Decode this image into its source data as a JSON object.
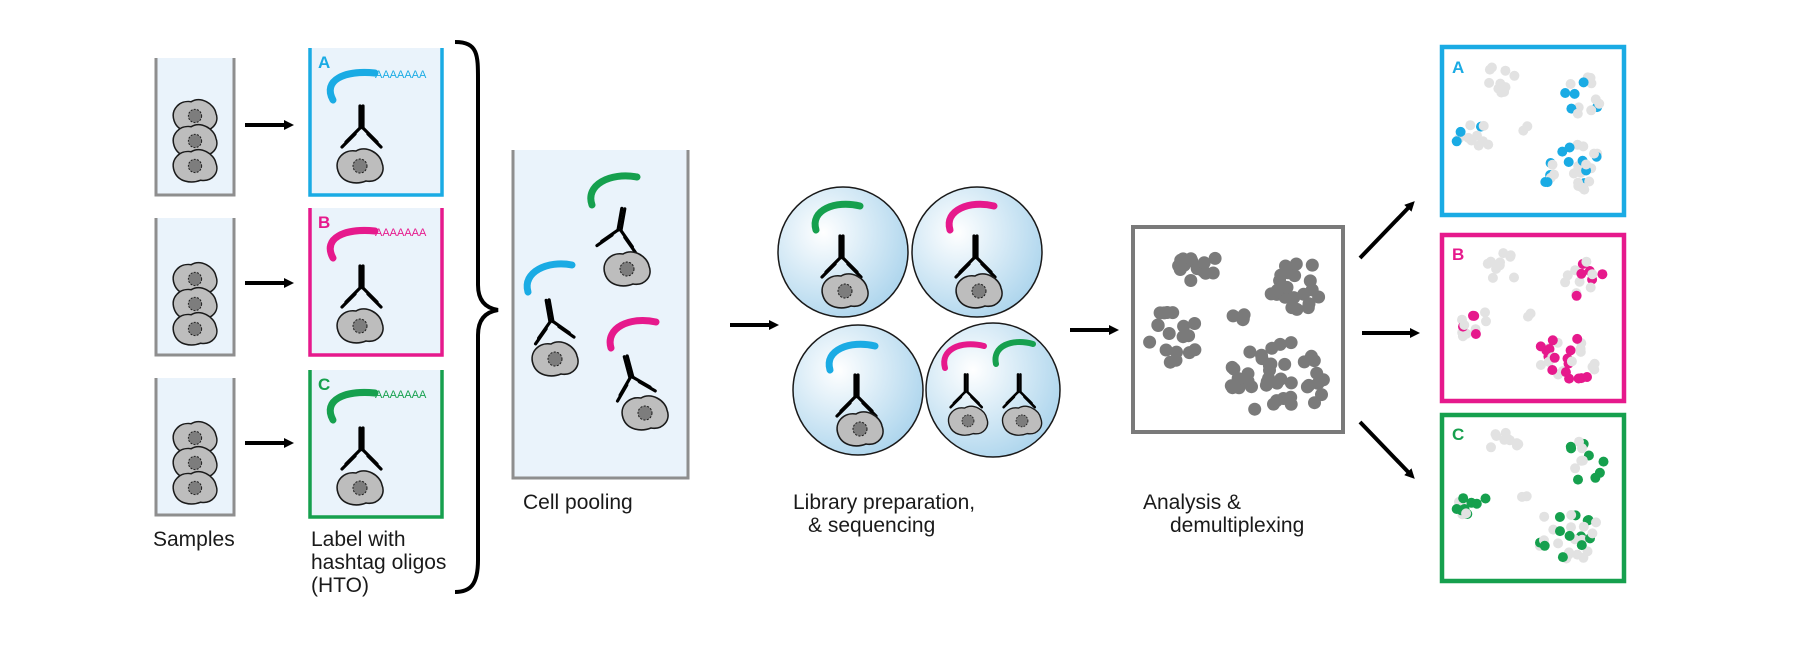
{
  "colors": {
    "A": "#1aabe4",
    "B": "#e6198c",
    "C": "#16a04e",
    "tube_fill": "#eaf3fb",
    "tube_stroke": "#8e8e8e",
    "cell_fill": "#bdbdbd",
    "cluster_gray": "#7a7a7a",
    "cluster_light": "#e2e2e2"
  },
  "labels": {
    "samples": "Samples",
    "label_line1": "Label with",
    "label_line2": "hashtag oligos",
    "label_line3": "(HTO)",
    "pooling": "Cell pooling",
    "library_line1": "Library preparation,",
    "library_line2": "& sequencing",
    "analysis_line1": "Analysis &",
    "analysis_line2": "demultiplexing"
  },
  "hashtags": [
    {
      "letter": "A",
      "color_key": "A",
      "tail": "AAAAAAA"
    },
    {
      "letter": "B",
      "color_key": "B",
      "tail": "AAAAAAA"
    },
    {
      "letter": "C",
      "color_key": "C",
      "tail": "AAAAAAA"
    }
  ],
  "outputs": [
    {
      "letter": "A",
      "color_key": "A"
    },
    {
      "letter": "B",
      "color_key": "B"
    },
    {
      "letter": "C",
      "color_key": "C"
    }
  ]
}
